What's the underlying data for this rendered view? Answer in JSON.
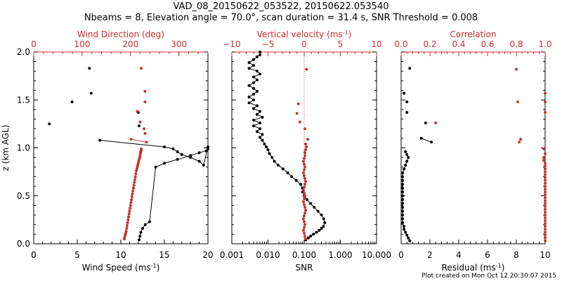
{
  "figure": {
    "title_line1": "VAD_08_20150622_053522, 20150622.053540",
    "title_line2": "Nbeams = 8, Elevation angle = 70.0°, scan duration = 31.4 s, SNR Threshold = 0.008",
    "footer": "Plot created on Mon Oct 12 20:30:07 2015",
    "colors": {
      "black": "#000000",
      "red": "#c0392b",
      "axis_red": "#d42a2a"
    }
  },
  "chart_data": [
    {
      "type": "scatter",
      "panel": "wind",
      "ylabel": "z (km AGL)",
      "ylim": [
        0,
        2
      ],
      "yticks": [
        "0.0",
        "0.5",
        "1.0",
        "1.5",
        "2.0"
      ],
      "bottom_axis": {
        "label": "Wind Speed (ms",
        "label_sup": "-1",
        "label_suffix": ")",
        "range": [
          0,
          20
        ],
        "ticks": [
          "0",
          "5",
          "10",
          "15",
          "20"
        ]
      },
      "top_axis": {
        "label": "Wind Direction (deg)",
        "range": [
          0,
          360
        ],
        "ticks": [
          "0",
          "100",
          "200",
          "300"
        ]
      },
      "series": [
        {
          "axis": "bottom",
          "color": "black",
          "connected": true,
          "x": [
            12.1,
            12.2,
            12.3,
            12.5,
            12.8,
            13.3,
            14.0,
            15.0,
            16.5,
            18.0,
            19.0,
            19.8,
            20.0,
            20.0,
            19.5,
            19.0,
            18.0,
            17.0,
            16.5,
            16.0,
            15.0,
            7.6
          ],
          "y": [
            0.04,
            0.08,
            0.12,
            0.16,
            0.2,
            0.23,
            0.8,
            0.84,
            0.88,
            0.92,
            0.95,
            0.97,
            0.99,
            1.01,
            0.82,
            0.86,
            0.9,
            0.93,
            0.96,
            0.99,
            1.01,
            1.08
          ]
        },
        {
          "axis": "bottom",
          "color": "black",
          "connected": false,
          "x": [
            1.8,
            4.4,
            6.6,
            6.4,
            12.0,
            12.1
          ],
          "y": [
            1.25,
            1.48,
            1.57,
            1.83,
            1.37,
            1.23
          ]
        },
        {
          "axis": "top",
          "color": "red",
          "connected": true,
          "x": [
            187,
            188,
            189,
            190,
            191,
            192,
            193,
            194,
            195,
            196,
            197,
            198,
            199,
            200,
            201,
            202,
            203,
            204,
            205,
            206,
            207,
            208,
            209,
            210,
            211,
            212,
            213,
            214,
            215,
            216,
            217,
            218,
            219,
            220,
            220,
            221,
            221,
            222,
            222,
            222
          ],
          "y": [
            0.05,
            0.07,
            0.09,
            0.11,
            0.13,
            0.16,
            0.19,
            0.22,
            0.25,
            0.28,
            0.31,
            0.34,
            0.37,
            0.4,
            0.43,
            0.46,
            0.49,
            0.52,
            0.55,
            0.58,
            0.61,
            0.64,
            0.67,
            0.7,
            0.73,
            0.76,
            0.78,
            0.8,
            0.82,
            0.84,
            0.86,
            0.88,
            0.9,
            0.92,
            0.94,
            0.95,
            0.96,
            0.97,
            0.98,
            0.99
          ]
        },
        {
          "axis": "top",
          "color": "red",
          "connected": true,
          "x": [
            201,
            233
          ],
          "y": [
            1.09,
            1.06
          ]
        },
        {
          "axis": "top",
          "color": "red",
          "connected": false,
          "x": [
            222,
            230,
            230,
            214,
            220,
            228,
            230
          ],
          "y": [
            1.83,
            1.59,
            1.48,
            1.38,
            1.27,
            1.2,
            1.15
          ]
        }
      ]
    },
    {
      "type": "scatter",
      "panel": "vertical",
      "xscale_bottom": "log",
      "bottom_axis": {
        "label": "SNR",
        "range": [
          0.001,
          10
        ],
        "ticks": [
          "0.001",
          "0.010",
          "0.100",
          "1.000",
          "10.000"
        ]
      },
      "top_axis": {
        "label": "Vertical velocity (ms",
        "label_sup": "-1",
        "label_suffix": ")",
        "range": [
          -10,
          10
        ],
        "ticks": [
          "−10",
          "−5",
          "0",
          "5",
          "10"
        ]
      },
      "zero_line_value": 0,
      "series": [
        {
          "axis": "bottom",
          "color": "black",
          "connected": true,
          "x": [
            0.11,
            0.13,
            0.15,
            0.18,
            0.22,
            0.26,
            0.3,
            0.34,
            0.37,
            0.35,
            0.3,
            0.24,
            0.19,
            0.15,
            0.12,
            0.1,
            0.09,
            0.09,
            0.08,
            0.06,
            0.045,
            0.035,
            0.026,
            0.019,
            0.015,
            0.013,
            0.011,
            0.01,
            0.009,
            0.008,
            0.007,
            0.006,
            0.007,
            0.005,
            0.006,
            0.004,
            0.006,
            0.004,
            0.007,
            0.005,
            0.006,
            0.004,
            0.005,
            0.003,
            0.004,
            0.003,
            0.004,
            0.005,
            0.004,
            0.003,
            0.004,
            0.005,
            0.004,
            0.006,
            0.005,
            0.003,
            0.004,
            0.003,
            0.004,
            0.005,
            0.006,
            0.006
          ],
          "y": [
            0.04,
            0.06,
            0.08,
            0.1,
            0.12,
            0.14,
            0.16,
            0.18,
            0.22,
            0.26,
            0.3,
            0.34,
            0.38,
            0.42,
            0.46,
            0.5,
            0.54,
            0.58,
            0.62,
            0.66,
            0.7,
            0.74,
            0.78,
            0.82,
            0.86,
            0.9,
            0.94,
            0.98,
            1.01,
            1.04,
            1.08,
            1.11,
            1.14,
            1.17,
            1.2,
            1.23,
            1.26,
            1.29,
            1.32,
            1.35,
            1.38,
            1.41,
            1.44,
            1.47,
            1.5,
            1.53,
            1.56,
            1.59,
            1.62,
            1.65,
            1.68,
            1.71,
            1.74,
            1.77,
            1.8,
            1.83,
            1.86,
            1.89,
            1.92,
            1.95,
            1.97,
            2.0
          ]
        },
        {
          "axis": "top",
          "color": "red",
          "connected": true,
          "x": [
            0.2,
            0.1,
            0.0,
            -0.1,
            0.0,
            0.1,
            0.0,
            -0.1,
            0.0,
            0.1,
            0.2,
            0.1,
            0.0,
            -0.1,
            0.0,
            0.1,
            0.0,
            -0.1,
            0.0,
            0.1,
            0.2,
            0.1,
            0.0,
            -0.1,
            0.0,
            0.1,
            0.0,
            -0.1,
            0.0,
            0.1,
            0.1,
            0.2,
            0.3,
            0.2
          ],
          "y": [
            0.05,
            0.08,
            0.11,
            0.14,
            0.17,
            0.2,
            0.23,
            0.26,
            0.29,
            0.32,
            0.35,
            0.38,
            0.41,
            0.44,
            0.47,
            0.5,
            0.53,
            0.56,
            0.59,
            0.62,
            0.65,
            0.68,
            0.71,
            0.74,
            0.77,
            0.8,
            0.83,
            0.86,
            0.89,
            0.92,
            0.95,
            0.98,
            1.01,
            1.04
          ]
        },
        {
          "axis": "top",
          "color": "red",
          "connected": false,
          "x": [
            0.5,
            -0.8,
            -1.0,
            -0.6,
            0.1,
            0.3
          ],
          "y": [
            1.09,
            1.46,
            1.36,
            1.27,
            1.2,
            1.82
          ]
        }
      ]
    },
    {
      "type": "scatter",
      "panel": "residual",
      "bottom_axis": {
        "label": "Residual (ms",
        "label_sup": "-1",
        "label_suffix": ")",
        "range": [
          0,
          10
        ],
        "ticks": [
          "0",
          "2",
          "4",
          "6",
          "8",
          "10"
        ]
      },
      "top_axis": {
        "label": "Correlation",
        "range": [
          0,
          1
        ],
        "ticks": [
          "0.0",
          "0.2",
          "0.4",
          "0.6",
          "0.8",
          "1.0"
        ]
      },
      "series": [
        {
          "axis": "bottom",
          "color": "black",
          "connected": true,
          "x": [
            0.6,
            0.5,
            0.4,
            0.3,
            0.2,
            0.2,
            0.1,
            0.1,
            0.1,
            0.1,
            0.1,
            0.1,
            0.1,
            0.1,
            0.1,
            0.1,
            0.1,
            0.1,
            0.1,
            0.1,
            0.2,
            0.3,
            0.4,
            0.5,
            0.4,
            0.3
          ],
          "y": [
            0.03,
            0.06,
            0.09,
            0.12,
            0.15,
            0.18,
            0.22,
            0.26,
            0.3,
            0.34,
            0.38,
            0.42,
            0.46,
            0.5,
            0.54,
            0.58,
            0.62,
            0.66,
            0.7,
            0.74,
            0.78,
            0.82,
            0.86,
            0.9,
            0.93,
            0.96
          ]
        },
        {
          "axis": "bottom",
          "color": "black",
          "connected": true,
          "x": [
            1.4,
            2.1
          ],
          "y": [
            1.1,
            1.06
          ]
        },
        {
          "axis": "bottom",
          "color": "black",
          "connected": false,
          "x": [
            0.6,
            0.2,
            0.4,
            0.4,
            1.7
          ],
          "y": [
            1.83,
            1.57,
            1.48,
            1.37,
            1.26
          ]
        },
        {
          "axis": "top",
          "color": "red",
          "connected": true,
          "x": [
            1.0,
            1.0,
            1.0,
            1.0,
            1.0,
            1.0,
            1.0,
            1.0,
            1.0,
            1.0,
            1.0,
            1.0,
            1.0,
            1.0,
            1.0,
            1.0,
            1.0,
            1.0,
            1.0,
            1.0,
            1.0,
            1.0,
            1.0,
            1.0,
            1.0,
            1.0,
            1.0,
            1.0,
            0.99,
            0.99
          ],
          "y": [
            0.03,
            0.06,
            0.09,
            0.12,
            0.15,
            0.18,
            0.21,
            0.24,
            0.27,
            0.3,
            0.33,
            0.36,
            0.39,
            0.42,
            0.45,
            0.48,
            0.51,
            0.54,
            0.57,
            0.6,
            0.63,
            0.66,
            0.69,
            0.72,
            0.75,
            0.78,
            0.81,
            0.84,
            0.87,
            0.9
          ]
        },
        {
          "axis": "top",
          "color": "red",
          "connected": false,
          "x": [
            0.99,
            1.0,
            0.82,
            0.83,
            0.81,
            1.0,
            0.8,
            0.24,
            1.0,
            1.0
          ],
          "y": [
            0.99,
            0.94,
            1.06,
            1.09,
            1.48,
            1.57,
            1.82,
            1.26,
            1.37,
            1.48
          ]
        }
      ]
    }
  ]
}
